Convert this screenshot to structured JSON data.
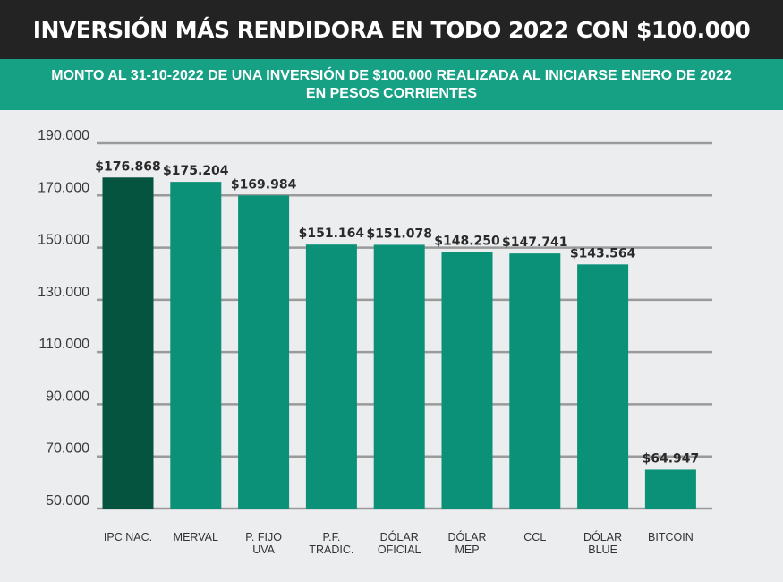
{
  "header": {
    "title": "INVERSIÓN MÁS RENDIDORA EN TODO 2022 CON $100.000",
    "subtitle_line1": "MONTO AL 31-10-2022 DE UNA INVERSIÓN DE $100.000 REALIZADA AL INICIARSE ENERO DE 2022",
    "subtitle_line2": "EN PESOS CORRIENTES"
  },
  "colors": {
    "title_bg": "#232323",
    "subtitle_bg": "#17a184",
    "bar_highlight": "#05543f",
    "bar": "#0b9177",
    "grid": "#9a9a9a",
    "background": "#ecedef"
  },
  "chart_data": {
    "type": "bar",
    "title": "INVERSIÓN MÁS RENDIDORA EN TODO 2022 CON $100.000",
    "subtitle": "MONTO AL 31-10-2022 DE UNA INVERSIÓN DE $100.000 REALIZADA AL INICIARSE ENERO DE 2022 EN PESOS CORRIENTES",
    "categories": [
      [
        "IPC NAC."
      ],
      [
        "MERVAL"
      ],
      [
        "P. FIJO",
        "UVA"
      ],
      [
        "P.F.",
        "TRADIC."
      ],
      [
        "DÓLAR",
        "OFICIAL"
      ],
      [
        "DÓLAR",
        "MEP"
      ],
      [
        "CCL"
      ],
      [
        "DÓLAR",
        "BLUE"
      ],
      [
        "BITCOIN"
      ]
    ],
    "values": [
      176868,
      175204,
      169984,
      151164,
      151078,
      148250,
      147741,
      143564,
      64947
    ],
    "value_labels": [
      "$176.868",
      "$175.204",
      "$169.984",
      "$151.164",
      "$151.078",
      "$148.250",
      "$147.741",
      "$143.564",
      "$64.947"
    ],
    "yticks": [
      50000,
      70000,
      90000,
      110000,
      130000,
      150000,
      170000,
      190000
    ],
    "ytick_labels": [
      "50.000",
      "70.000",
      "90.000",
      "110.000",
      "130.000",
      "150.000",
      "170.000",
      "190.000"
    ],
    "ylim": [
      50000,
      190000
    ],
    "highlight_index": 0,
    "xlabel": "",
    "ylabel": ""
  }
}
